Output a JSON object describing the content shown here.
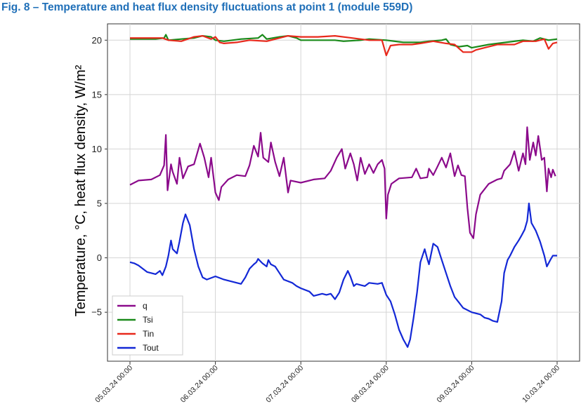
{
  "figure": {
    "title": "Fig. 8 – Temperature and heat flux density fluctuations at point 1 (module 559D)"
  },
  "chart_data": {
    "type": "line",
    "title": "",
    "ylabel": "Temperature, °C, heat flux density, W/m²",
    "xlabel": "",
    "xlim": [
      0,
      5
    ],
    "ylim": [
      -9.5,
      21.5
    ],
    "yticks": [
      -5,
      0,
      5,
      10,
      15,
      20
    ],
    "ytick_labels": [
      "−5",
      "0",
      "5",
      "10",
      "15",
      "20"
    ],
    "x_unit": "days from 05.03.24 00:00",
    "xticks": [
      0,
      1,
      2,
      3,
      4,
      5
    ],
    "xtick_labels": [
      "05.03.24 00:00",
      "06.03.24 00:00",
      "07.03.24 00:00",
      "08.03.24 00:00",
      "09.03.24 00:00",
      "10.03.24 00:00"
    ],
    "grid": true,
    "legend_position": "bottom-left",
    "series": [
      {
        "name": "q",
        "color": "#8b0a8b",
        "points": [
          [
            0,
            6.7
          ],
          [
            0.1,
            7.1
          ],
          [
            0.25,
            7.2
          ],
          [
            0.35,
            7.6
          ],
          [
            0.4,
            8.5
          ],
          [
            0.42,
            11.3
          ],
          [
            0.44,
            6.2
          ],
          [
            0.48,
            8.6
          ],
          [
            0.5,
            7.9
          ],
          [
            0.55,
            6.8
          ],
          [
            0.58,
            9.2
          ],
          [
            0.62,
            7.3
          ],
          [
            0.68,
            8.4
          ],
          [
            0.75,
            8.6
          ],
          [
            0.82,
            10.5
          ],
          [
            0.87,
            9.2
          ],
          [
            0.92,
            7.4
          ],
          [
            0.95,
            9.2
          ],
          [
            1.0,
            6.0
          ],
          [
            1.04,
            5.3
          ],
          [
            1.07,
            6.5
          ],
          [
            1.15,
            7.2
          ],
          [
            1.25,
            7.6
          ],
          [
            1.35,
            7.5
          ],
          [
            1.4,
            8.5
          ],
          [
            1.45,
            10.3
          ],
          [
            1.5,
            9.3
          ],
          [
            1.53,
            11.5
          ],
          [
            1.56,
            9.2
          ],
          [
            1.62,
            8.8
          ],
          [
            1.65,
            10.6
          ],
          [
            1.7,
            8.8
          ],
          [
            1.75,
            7.5
          ],
          [
            1.8,
            9.2
          ],
          [
            1.85,
            6.0
          ],
          [
            1.88,
            7.1
          ],
          [
            2.0,
            6.9
          ],
          [
            2.15,
            7.2
          ],
          [
            2.28,
            7.3
          ],
          [
            2.35,
            8.0
          ],
          [
            2.42,
            9.2
          ],
          [
            2.48,
            10.0
          ],
          [
            2.52,
            8.2
          ],
          [
            2.58,
            9.6
          ],
          [
            2.62,
            8.6
          ],
          [
            2.66,
            7.1
          ],
          [
            2.7,
            9.2
          ],
          [
            2.75,
            7.7
          ],
          [
            2.8,
            8.6
          ],
          [
            2.85,
            7.8
          ],
          [
            2.9,
            8.6
          ],
          [
            2.95,
            9.0
          ],
          [
            2.98,
            8.2
          ],
          [
            3.0,
            3.6
          ],
          [
            3.02,
            5.8
          ],
          [
            3.06,
            6.8
          ],
          [
            3.15,
            7.3
          ],
          [
            3.3,
            7.4
          ],
          [
            3.35,
            8.2
          ],
          [
            3.4,
            7.3
          ],
          [
            3.48,
            7.4
          ],
          [
            3.5,
            8.2
          ],
          [
            3.55,
            7.6
          ],
          [
            3.6,
            8.4
          ],
          [
            3.65,
            9.2
          ],
          [
            3.7,
            8.3
          ],
          [
            3.75,
            9.6
          ],
          [
            3.8,
            7.5
          ],
          [
            3.84,
            8.5
          ],
          [
            3.88,
            7.6
          ],
          [
            3.92,
            7.5
          ],
          [
            3.95,
            4.6
          ],
          [
            3.98,
            2.3
          ],
          [
            4.02,
            1.8
          ],
          [
            4.05,
            4.0
          ],
          [
            4.1,
            5.8
          ],
          [
            4.2,
            6.8
          ],
          [
            4.3,
            7.2
          ],
          [
            4.35,
            7.3
          ],
          [
            4.38,
            8.0
          ],
          [
            4.45,
            8.6
          ],
          [
            4.5,
            9.8
          ],
          [
            4.55,
            8.0
          ],
          [
            4.6,
            9.6
          ],
          [
            4.63,
            8.6
          ],
          [
            4.65,
            12.0
          ],
          [
            4.68,
            9.0
          ],
          [
            4.72,
            10.6
          ],
          [
            4.75,
            9.4
          ],
          [
            4.78,
            11.2
          ],
          [
            4.8,
            10.1
          ],
          [
            4.82,
            9.0
          ],
          [
            4.85,
            9.2
          ],
          [
            4.88,
            6.1
          ],
          [
            4.9,
            8.2
          ],
          [
            4.93,
            7.4
          ],
          [
            4.95,
            8.1
          ],
          [
            4.98,
            7.5
          ]
        ]
      },
      {
        "name": "Tsi",
        "color": "#1a8a1a",
        "points": [
          [
            0,
            20.1
          ],
          [
            0.3,
            20.1
          ],
          [
            0.4,
            20.2
          ],
          [
            0.42,
            20.5
          ],
          [
            0.45,
            20.0
          ],
          [
            0.6,
            20.1
          ],
          [
            0.75,
            20.2
          ],
          [
            0.85,
            20.4
          ],
          [
            0.95,
            20.3
          ],
          [
            1.0,
            20.0
          ],
          [
            1.1,
            19.9
          ],
          [
            1.3,
            20.1
          ],
          [
            1.5,
            20.2
          ],
          [
            1.55,
            20.5
          ],
          [
            1.6,
            20.1
          ],
          [
            1.75,
            20.3
          ],
          [
            1.85,
            20.4
          ],
          [
            1.95,
            20.2
          ],
          [
            2.0,
            20.0
          ],
          [
            2.2,
            20.0
          ],
          [
            2.4,
            20.0
          ],
          [
            2.5,
            19.9
          ],
          [
            2.7,
            20.0
          ],
          [
            2.8,
            20.1
          ],
          [
            3.0,
            20.0
          ],
          [
            3.2,
            19.8
          ],
          [
            3.4,
            19.8
          ],
          [
            3.5,
            19.9
          ],
          [
            3.65,
            20.0
          ],
          [
            3.7,
            20.1
          ],
          [
            3.75,
            19.6
          ],
          [
            3.85,
            19.4
          ],
          [
            3.95,
            19.5
          ],
          [
            4.0,
            19.3
          ],
          [
            4.2,
            19.6
          ],
          [
            4.4,
            19.8
          ],
          [
            4.6,
            20.0
          ],
          [
            4.72,
            19.9
          ],
          [
            4.8,
            20.2
          ],
          [
            4.9,
            20.0
          ],
          [
            5.0,
            20.1
          ]
        ]
      },
      {
        "name": "Tin",
        "color": "#e8291c",
        "points": [
          [
            0,
            20.2
          ],
          [
            0.2,
            20.2
          ],
          [
            0.38,
            20.2
          ],
          [
            0.45,
            20.0
          ],
          [
            0.6,
            19.9
          ],
          [
            0.75,
            20.3
          ],
          [
            0.85,
            20.4
          ],
          [
            0.95,
            20.1
          ],
          [
            1.0,
            20.3
          ],
          [
            1.05,
            19.8
          ],
          [
            1.1,
            19.7
          ],
          [
            1.25,
            19.8
          ],
          [
            1.4,
            20.0
          ],
          [
            1.6,
            19.9
          ],
          [
            1.75,
            20.2
          ],
          [
            1.85,
            20.4
          ],
          [
            2.0,
            20.3
          ],
          [
            2.2,
            20.3
          ],
          [
            2.4,
            20.4
          ],
          [
            2.6,
            20.2
          ],
          [
            2.8,
            20.0
          ],
          [
            2.95,
            20.0
          ],
          [
            3.0,
            18.6
          ],
          [
            3.05,
            19.5
          ],
          [
            3.15,
            19.6
          ],
          [
            3.3,
            19.6
          ],
          [
            3.4,
            19.7
          ],
          [
            3.55,
            19.9
          ],
          [
            3.7,
            19.7
          ],
          [
            3.8,
            19.6
          ],
          [
            3.9,
            18.9
          ],
          [
            4.0,
            18.9
          ],
          [
            4.05,
            19.1
          ],
          [
            4.2,
            19.4
          ],
          [
            4.3,
            19.6
          ],
          [
            4.5,
            19.6
          ],
          [
            4.6,
            19.9
          ],
          [
            4.75,
            19.9
          ],
          [
            4.85,
            20.1
          ],
          [
            4.9,
            19.2
          ],
          [
            4.95,
            19.7
          ],
          [
            5.0,
            19.8
          ]
        ]
      },
      {
        "name": "Tout",
        "color": "#1328d6",
        "points": [
          [
            0,
            -0.4
          ],
          [
            0.05,
            -0.5
          ],
          [
            0.1,
            -0.7
          ],
          [
            0.2,
            -1.3
          ],
          [
            0.3,
            -1.5
          ],
          [
            0.35,
            -1.2
          ],
          [
            0.38,
            -1.6
          ],
          [
            0.42,
            -0.8
          ],
          [
            0.45,
            0.2
          ],
          [
            0.48,
            1.6
          ],
          [
            0.5,
            0.8
          ],
          [
            0.55,
            0.4
          ],
          [
            0.58,
            1.5
          ],
          [
            0.62,
            3.2
          ],
          [
            0.65,
            4.0
          ],
          [
            0.7,
            3.0
          ],
          [
            0.75,
            0.8
          ],
          [
            0.8,
            -0.8
          ],
          [
            0.85,
            -1.8
          ],
          [
            0.9,
            -2.0
          ],
          [
            1.0,
            -1.7
          ],
          [
            1.1,
            -2.0
          ],
          [
            1.2,
            -2.2
          ],
          [
            1.3,
            -2.4
          ],
          [
            1.35,
            -1.8
          ],
          [
            1.4,
            -1.0
          ],
          [
            1.45,
            -0.6
          ],
          [
            1.48,
            -0.4
          ],
          [
            1.5,
            -0.1
          ],
          [
            1.55,
            -0.5
          ],
          [
            1.6,
            -0.8
          ],
          [
            1.62,
            -0.2
          ],
          [
            1.65,
            -0.6
          ],
          [
            1.7,
            -0.8
          ],
          [
            1.75,
            -1.4
          ],
          [
            1.8,
            -2.0
          ],
          [
            1.9,
            -2.3
          ],
          [
            1.95,
            -2.6
          ],
          [
            2.0,
            -2.8
          ],
          [
            2.1,
            -3.1
          ],
          [
            2.15,
            -3.5
          ],
          [
            2.25,
            -3.3
          ],
          [
            2.3,
            -3.4
          ],
          [
            2.35,
            -3.3
          ],
          [
            2.4,
            -3.8
          ],
          [
            2.45,
            -3.2
          ],
          [
            2.5,
            -2.0
          ],
          [
            2.55,
            -1.2
          ],
          [
            2.58,
            -1.7
          ],
          [
            2.62,
            -2.6
          ],
          [
            2.65,
            -2.4
          ],
          [
            2.7,
            -2.5
          ],
          [
            2.75,
            -2.6
          ],
          [
            2.8,
            -2.3
          ],
          [
            2.9,
            -2.4
          ],
          [
            2.95,
            -2.3
          ],
          [
            3.0,
            -3.4
          ],
          [
            3.05,
            -4.0
          ],
          [
            3.1,
            -5.2
          ],
          [
            3.15,
            -6.6
          ],
          [
            3.2,
            -7.5
          ],
          [
            3.25,
            -8.2
          ],
          [
            3.28,
            -7.5
          ],
          [
            3.32,
            -5.5
          ],
          [
            3.36,
            -3.2
          ],
          [
            3.4,
            -0.4
          ],
          [
            3.45,
            0.8
          ],
          [
            3.48,
            -0.1
          ],
          [
            3.5,
            -0.6
          ],
          [
            3.55,
            1.3
          ],
          [
            3.6,
            1.0
          ],
          [
            3.65,
            -0.2
          ],
          [
            3.7,
            -1.4
          ],
          [
            3.75,
            -2.6
          ],
          [
            3.8,
            -3.6
          ],
          [
            3.85,
            -4.1
          ],
          [
            3.9,
            -4.6
          ],
          [
            4.0,
            -5.0
          ],
          [
            4.1,
            -5.2
          ],
          [
            4.15,
            -5.5
          ],
          [
            4.2,
            -5.6
          ],
          [
            4.25,
            -5.8
          ],
          [
            4.3,
            -5.9
          ],
          [
            4.35,
            -4.0
          ],
          [
            4.38,
            -1.4
          ],
          [
            4.42,
            -0.2
          ],
          [
            4.45,
            0.2
          ],
          [
            4.5,
            1.0
          ],
          [
            4.55,
            1.6
          ],
          [
            4.58,
            2.0
          ],
          [
            4.62,
            2.6
          ],
          [
            4.65,
            3.4
          ],
          [
            4.67,
            5.0
          ],
          [
            4.7,
            3.2
          ],
          [
            4.75,
            2.5
          ],
          [
            4.8,
            1.5
          ],
          [
            4.85,
            0.2
          ],
          [
            4.88,
            -0.8
          ],
          [
            4.92,
            -0.2
          ],
          [
            4.95,
            0.2
          ],
          [
            5.0,
            0.2
          ]
        ]
      }
    ]
  }
}
